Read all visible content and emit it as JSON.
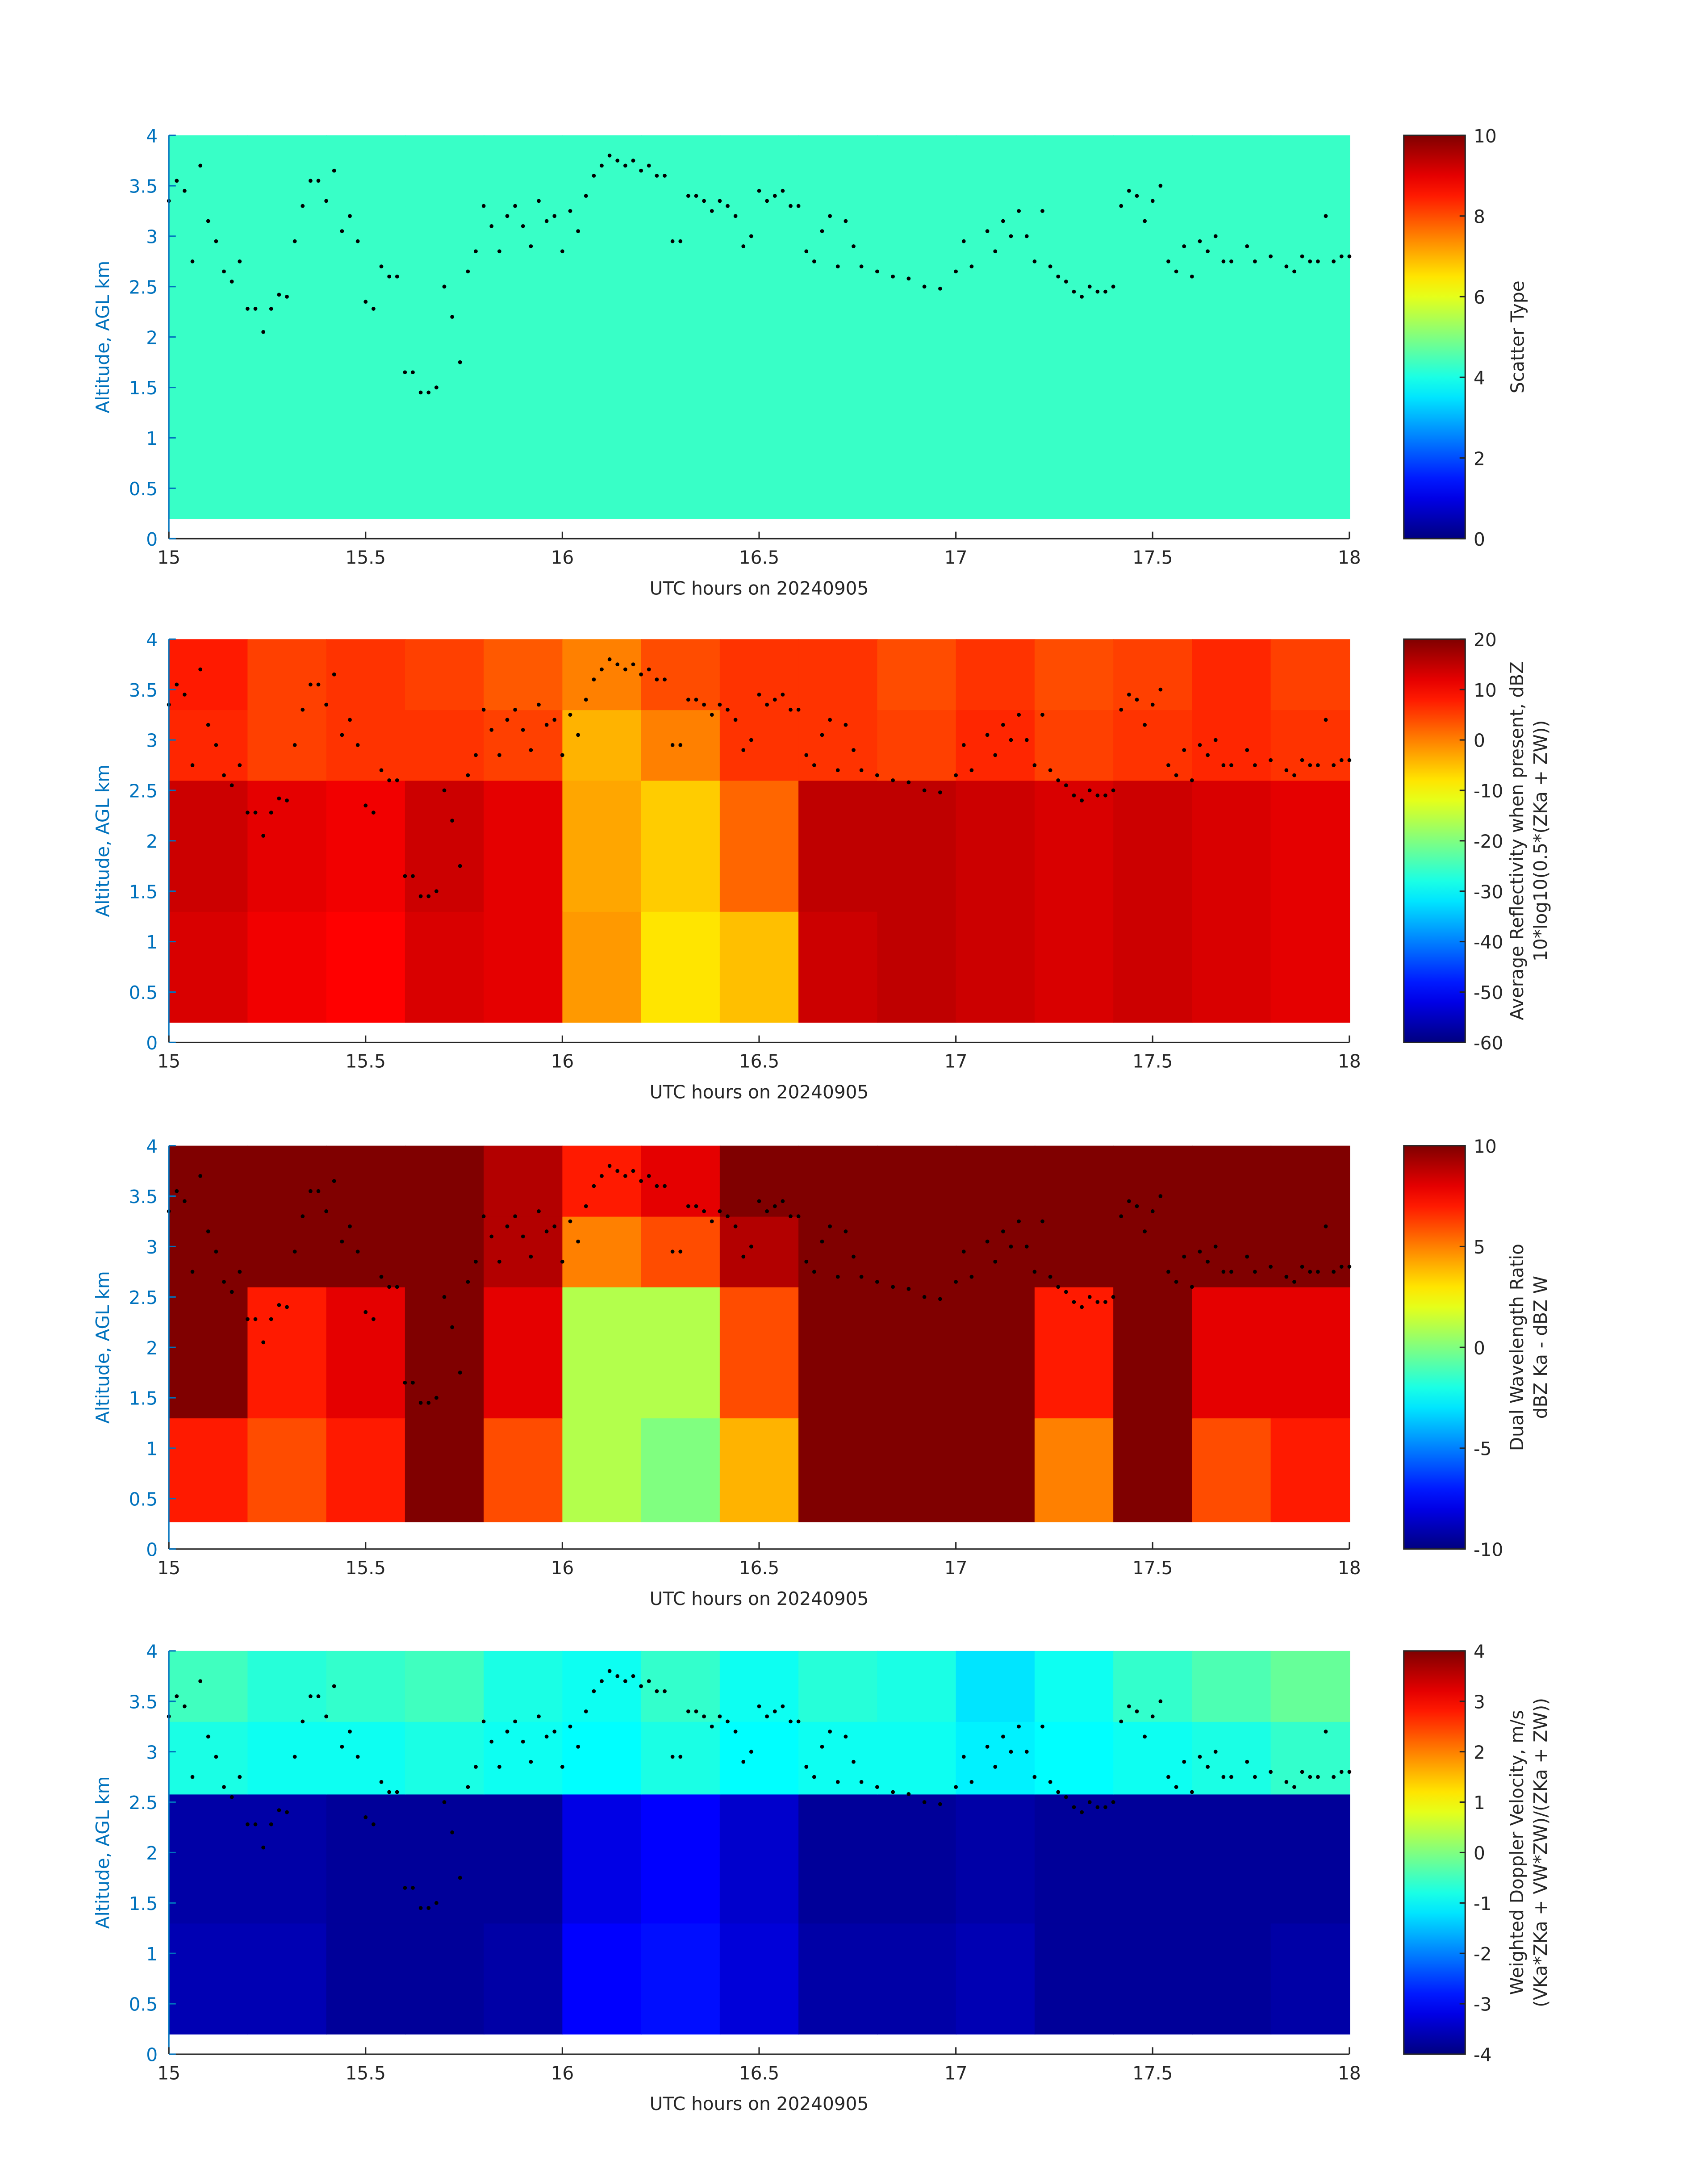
{
  "chart_data": [
    {
      "type": "heatmap",
      "colormap": "jet",
      "xlabel": "UTC hours on 20240905",
      "ylabel": "Altitude, AGL km",
      "colorbar_label": [
        "Scatter Type"
      ],
      "clim": [
        0,
        10
      ],
      "cticks": [
        0,
        2,
        4,
        6,
        8,
        10
      ],
      "xlim": [
        15,
        18
      ],
      "ylim": [
        0,
        4
      ],
      "xticks": [
        15,
        15.5,
        16,
        16.5,
        17,
        17.5,
        18
      ],
      "yticks": [
        0,
        0.5,
        1,
        1.5,
        2,
        2.5,
        3,
        3.5,
        4
      ],
      "x_edges": [
        15,
        15.2,
        15.4,
        15.6,
        15.8,
        16,
        16.2,
        16.4,
        16.6,
        16.8,
        17,
        17.2,
        17.4,
        17.6,
        17.8,
        18
      ],
      "y_edges": [
        0.2,
        1.3,
        2.6,
        3.3,
        4.0
      ],
      "z": [
        [
          4.3,
          4.3,
          4.3,
          4.3,
          4.3,
          4.3,
          4.3,
          4.3,
          4.3,
          4.3,
          4.3,
          4.3,
          4.3,
          4.3,
          4.3
        ],
        [
          4.3,
          4.3,
          4.3,
          4.3,
          4.3,
          4.3,
          4.3,
          4.3,
          4.3,
          4.3,
          4.3,
          4.3,
          4.3,
          4.3,
          4.3
        ],
        [
          4.3,
          4.3,
          4.3,
          4.3,
          4.3,
          4.3,
          4.3,
          4.3,
          4.3,
          4.3,
          4.3,
          4.3,
          4.3,
          4.3,
          4.3
        ],
        [
          4.3,
          4.3,
          4.3,
          4.3,
          4.3,
          4.3,
          4.3,
          4.3,
          4.3,
          4.3,
          4.3,
          4.3,
          4.3,
          4.3,
          4.3
        ]
      ],
      "series": [
        {
          "color": "#000000",
          "x": [
            15.0,
            15.02,
            15.04,
            15.06,
            15.08,
            15.1,
            15.12,
            15.14,
            15.16,
            15.18,
            15.2,
            15.22,
            15.24,
            15.26,
            15.28,
            15.3,
            15.32,
            15.34,
            15.36,
            15.38,
            15.4,
            15.42,
            15.44,
            15.46,
            15.48,
            15.5,
            15.52,
            15.54,
            15.56,
            15.58,
            15.6,
            15.62,
            15.64,
            15.66,
            15.68,
            15.7,
            15.72,
            15.74,
            15.76,
            15.78,
            15.8,
            15.82,
            15.84,
            15.86,
            15.88,
            15.9,
            15.92,
            15.94,
            15.96,
            15.98,
            16.0,
            16.02,
            16.04,
            16.06,
            16.08,
            16.1,
            16.12,
            16.14,
            16.16,
            16.18,
            16.2,
            16.22,
            16.24,
            16.26,
            16.28,
            16.3,
            16.32,
            16.34,
            16.36,
            16.38,
            16.4,
            16.42,
            16.44,
            16.46,
            16.48,
            16.5,
            16.52,
            16.54,
            16.56,
            16.58,
            16.6,
            16.62,
            16.64,
            16.66,
            16.68,
            16.7,
            16.72,
            16.74,
            16.76,
            16.8,
            16.84,
            16.88,
            16.92,
            16.96,
            17.0,
            17.02,
            17.04,
            17.08,
            17.1,
            17.12,
            17.14,
            17.16,
            17.18,
            17.2,
            17.22,
            17.24,
            17.26,
            17.28,
            17.3,
            17.32,
            17.34,
            17.36,
            17.38,
            17.4,
            17.42,
            17.44,
            17.46,
            17.48,
            17.5,
            17.52,
            17.54,
            17.56,
            17.58,
            17.6,
            17.62,
            17.64,
            17.66,
            17.68,
            17.7,
            17.74,
            17.76,
            17.8,
            17.84,
            17.86,
            17.88,
            17.9,
            17.92,
            17.94,
            17.96,
            17.98,
            18.0
          ],
          "y": [
            3.35,
            3.55,
            3.45,
            2.75,
            3.7,
            3.15,
            2.95,
            2.65,
            2.55,
            2.75,
            2.28,
            2.28,
            2.05,
            2.28,
            2.42,
            2.4,
            2.95,
            3.3,
            3.55,
            3.55,
            3.35,
            3.65,
            3.05,
            3.2,
            2.95,
            2.35,
            2.28,
            2.7,
            2.6,
            2.6,
            1.65,
            1.65,
            1.45,
            1.45,
            1.5,
            2.5,
            2.2,
            1.75,
            2.65,
            2.85,
            3.3,
            3.1,
            2.85,
            3.2,
            3.3,
            3.1,
            2.9,
            3.35,
            3.15,
            3.2,
            2.85,
            3.25,
            3.05,
            3.4,
            3.6,
            3.7,
            3.8,
            3.75,
            3.7,
            3.75,
            3.65,
            3.7,
            3.6,
            3.6,
            2.95,
            2.95,
            3.4,
            3.4,
            3.35,
            3.25,
            3.35,
            3.3,
            3.2,
            2.9,
            3.0,
            3.45,
            3.35,
            3.4,
            3.45,
            3.3,
            3.3,
            2.85,
            2.75,
            3.05,
            3.2,
            2.7,
            3.15,
            2.9,
            2.7,
            2.65,
            2.6,
            2.58,
            2.5,
            2.48,
            2.65,
            2.95,
            2.7,
            3.05,
            2.85,
            3.15,
            3.0,
            3.25,
            3.0,
            2.75,
            3.25,
            2.7,
            2.6,
            2.55,
            2.45,
            2.4,
            2.5,
            2.45,
            2.45,
            2.5,
            3.3,
            3.45,
            3.4,
            3.15,
            3.35,
            3.5,
            2.75,
            2.65,
            2.9,
            2.6,
            2.95,
            2.85,
            3.0,
            2.75,
            2.75,
            2.9,
            2.75,
            2.8,
            2.7,
            2.65,
            2.8,
            2.75,
            2.75,
            3.2,
            2.75,
            2.8,
            2.8
          ]
        }
      ]
    },
    {
      "type": "heatmap",
      "colormap": "jet",
      "xlabel": "UTC hours on 20240905",
      "ylabel": "Altitude, AGL km",
      "colorbar_label": [
        "Average Reflectivity when present, dBZ",
        "10*log10(0.5*(ZKa + ZW))"
      ],
      "clim": [
        -60,
        20
      ],
      "cticks": [
        -60,
        -50,
        -40,
        -30,
        -20,
        -10,
        0,
        10,
        20
      ],
      "xlim": [
        15,
        18
      ],
      "ylim": [
        0,
        4
      ],
      "xticks": [
        15,
        15.5,
        16,
        16.5,
        17,
        17.5,
        18
      ],
      "yticks": [
        0,
        0.5,
        1,
        1.5,
        2,
        2.5,
        3,
        3.5,
        4
      ],
      "x_edges": [
        15,
        15.2,
        15.4,
        15.6,
        15.8,
        16,
        16.2,
        16.4,
        16.6,
        16.8,
        17,
        17.2,
        17.4,
        17.6,
        17.8,
        18
      ],
      "y_edges": [
        0.2,
        1.3,
        2.6,
        3.3,
        4.0
      ],
      "z": [
        [
          13,
          11,
          10,
          13,
          12,
          -2,
          -8,
          -5,
          14,
          15,
          14,
          13,
          14,
          13,
          12
        ],
        [
          14,
          12,
          11,
          14,
          12,
          -3,
          -6,
          2,
          15,
          15,
          14,
          13,
          14,
          13,
          12
        ],
        [
          7,
          5,
          6,
          6,
          5,
          -4,
          0,
          6,
          6,
          5,
          7,
          5,
          6,
          7,
          6
        ],
        [
          8,
          5,
          6,
          5,
          3,
          0,
          4,
          6,
          6,
          4,
          6,
          4,
          5,
          7,
          5
        ]
      ]
    },
    {
      "type": "heatmap",
      "colormap": "jet",
      "xlabel": "UTC hours on 20240905",
      "ylabel": "Altitude, AGL km",
      "colorbar_label": [
        "Dual Wavelength Ratio",
        "dBZ Ka - dBZ W"
      ],
      "clim": [
        -10,
        10
      ],
      "cticks": [
        -10,
        -5,
        0,
        5,
        10
      ],
      "xlim": [
        15,
        18
      ],
      "ylim": [
        0,
        4
      ],
      "xticks": [
        15,
        15.5,
        16,
        16.5,
        17,
        17.5,
        18
      ],
      "yticks": [
        0,
        0.5,
        1,
        1.5,
        2,
        2.5,
        3,
        3.5,
        4
      ],
      "x_edges": [
        15,
        15.2,
        15.4,
        15.6,
        15.8,
        16,
        16.2,
        16.4,
        16.6,
        16.8,
        17,
        17.2,
        17.4,
        17.6,
        17.8,
        18
      ],
      "y_edges": [
        0.27,
        1.3,
        2.6,
        3.3,
        4.0
      ],
      "z": [
        [
          7,
          6,
          7,
          10,
          6,
          1,
          0,
          4,
          10,
          10,
          10,
          5,
          10,
          6,
          7
        ],
        [
          10,
          7,
          8,
          10,
          8,
          1,
          1,
          6,
          10,
          10,
          10,
          7,
          10,
          8,
          8
        ],
        [
          10,
          10,
          10,
          10,
          9,
          5,
          6,
          9,
          10,
          10,
          10,
          10,
          10,
          10,
          10
        ],
        [
          10,
          10,
          10,
          10,
          9,
          7,
          8,
          10,
          10,
          10,
          10,
          10,
          10,
          10,
          10
        ]
      ]
    },
    {
      "type": "heatmap",
      "colormap": "jet",
      "xlabel": "UTC hours on 20240905",
      "ylabel": "Altitude, AGL km",
      "colorbar_label": [
        "Weighted Doppler Velocity, m/s",
        "(VKa*ZKa + VW*ZW)/(ZKa + ZW))"
      ],
      "clim": [
        -4,
        4
      ],
      "cticks": [
        -4,
        -3,
        -2,
        -1,
        0,
        1,
        2,
        3,
        4
      ],
      "xlim": [
        15,
        18
      ],
      "ylim": [
        0,
        4
      ],
      "xticks": [
        15,
        15.5,
        16,
        16.5,
        17,
        17.5,
        18
      ],
      "yticks": [
        0,
        0.5,
        1,
        1.5,
        2,
        2.5,
        3,
        3.5,
        4
      ],
      "x_edges": [
        15,
        15.2,
        15.4,
        15.6,
        15.8,
        16,
        16.2,
        16.4,
        16.6,
        16.8,
        17,
        17.2,
        17.4,
        17.6,
        17.8,
        18
      ],
      "y_edges": [
        0.2,
        1.3,
        2.58,
        3.3,
        4.0
      ],
      "z": [
        [
          -3.6,
          -3.6,
          -3.8,
          -3.8,
          -3.7,
          -3.0,
          -2.9,
          -3.3,
          -3.7,
          -3.7,
          -3.6,
          -3.8,
          -3.8,
          -3.8,
          -3.7
        ],
        [
          -3.7,
          -3.7,
          -3.8,
          -3.8,
          -3.8,
          -3.2,
          -3.0,
          -3.4,
          -3.8,
          -3.8,
          -3.7,
          -3.8,
          -3.8,
          -3.8,
          -3.8
        ],
        [
          -0.8,
          -0.9,
          -0.9,
          -0.8,
          -0.9,
          -1.0,
          -0.8,
          -1.0,
          -0.9,
          -0.9,
          -1.1,
          -1.0,
          -0.9,
          -0.8,
          -0.6
        ],
        [
          -0.5,
          -0.7,
          -0.6,
          -0.5,
          -0.8,
          -0.9,
          -0.6,
          -0.9,
          -0.7,
          -0.8,
          -1.2,
          -0.9,
          -0.6,
          -0.4,
          -0.2
        ]
      ]
    }
  ]
}
